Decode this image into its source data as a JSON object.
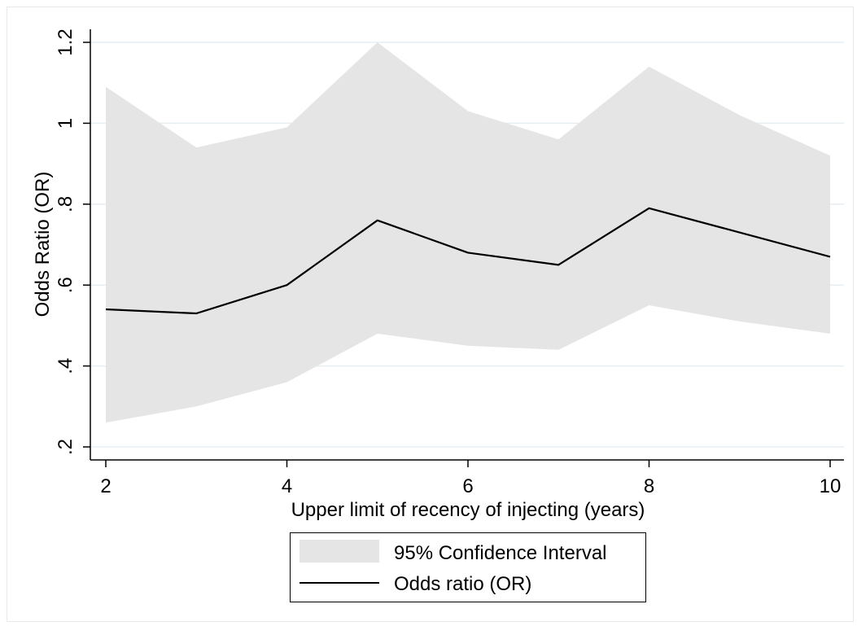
{
  "chart_data": {
    "type": "area",
    "title": "",
    "xlabel": "Upper limit of recency of injecting (years)",
    "ylabel": "Odds Ratio (OR)",
    "xlim": [
      2,
      10
    ],
    "ylim": [
      0.2,
      1.2
    ],
    "x_ticks": [
      2,
      4,
      6,
      8,
      10
    ],
    "x_tick_labels": [
      "2",
      "4",
      "6",
      "8",
      "10"
    ],
    "y_ticks": [
      0.2,
      0.4,
      0.6,
      0.8,
      1.0,
      1.2
    ],
    "y_tick_labels": [
      ".2",
      ".4",
      ".6",
      ".8",
      "1",
      "1.2"
    ],
    "grid": true,
    "legend_position": "bottom",
    "x": [
      2,
      3,
      4,
      5,
      6,
      7,
      8,
      9,
      10
    ],
    "series": [
      {
        "name": "95% Confidence Interval",
        "kind": "band",
        "lower": [
          0.26,
          0.3,
          0.36,
          0.48,
          0.45,
          0.44,
          0.55,
          0.51,
          0.48
        ],
        "upper": [
          1.09,
          0.94,
          0.99,
          1.2,
          1.03,
          0.96,
          1.14,
          1.02,
          0.92
        ],
        "color": "#e5e5e5"
      },
      {
        "name": "Odds ratio (OR)",
        "kind": "line",
        "values": [
          0.54,
          0.53,
          0.6,
          0.76,
          0.68,
          0.65,
          0.79,
          0.73,
          0.67
        ],
        "color": "#000000"
      }
    ],
    "colors": {
      "grid": "#e6eef2",
      "axis": "#000000",
      "frame": "#e8e8e8"
    }
  }
}
